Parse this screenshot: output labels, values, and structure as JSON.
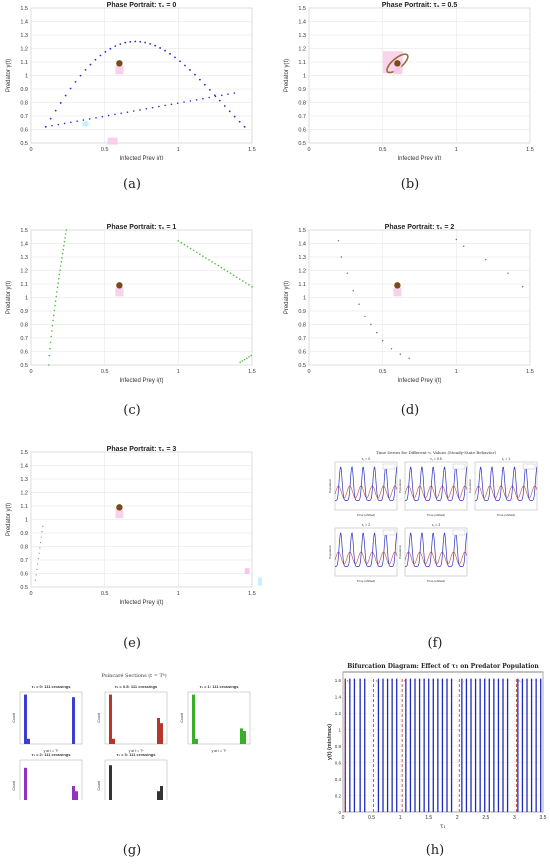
{
  "phase_portraits": [
    {
      "id": "a",
      "title": "Phase Portrait: τ₁ = 0",
      "xlabel": "Infected Prey i(t)",
      "ylabel": "Predator y(t)",
      "xticks": [
        "0",
        "0.5",
        "1",
        "1.5"
      ],
      "yticks": [
        "0.5",
        "0.6",
        "0.7",
        "0.8",
        "0.9",
        "1",
        "1.1",
        "1.2",
        "1.3",
        "1.4",
        "1.5"
      ],
      "equilibrium": {
        "x": 0.6,
        "y": 1.09
      },
      "caption": "(a)"
    },
    {
      "id": "b",
      "title": "Phase Portrait: τ₁ = 0.5",
      "xlabel": "Infected Prey i(t)",
      "ylabel": "Predator y(t)",
      "xticks": [
        "0",
        "0.5",
        "1",
        "1.5"
      ],
      "yticks": [
        "0.5",
        "0.6",
        "0.7",
        "0.8",
        "0.9",
        "1",
        "1.1",
        "1.2",
        "1.3",
        "1.4",
        "1.5"
      ],
      "equilibrium": {
        "x": 0.6,
        "y": 1.09
      },
      "caption": "(b)"
    },
    {
      "id": "c",
      "title": "Phase Portrait: τ₁ = 1",
      "xlabel": "Infected Prey i(t)",
      "ylabel": "Predator y(t)",
      "xticks": [
        "0",
        "0.5",
        "1",
        "1.5"
      ],
      "yticks": [
        "0.5",
        "0.6",
        "0.7",
        "0.8",
        "0.9",
        "1",
        "1.1",
        "1.2",
        "1.3",
        "1.4",
        "1.5"
      ],
      "equilibrium": {
        "x": 0.6,
        "y": 1.09
      },
      "caption": "(c)"
    },
    {
      "id": "d",
      "title": "Phase Portrait: τ₁ = 2",
      "xlabel": "Infected Prey i(t)",
      "ylabel": "Predator y(t)",
      "xticks": [
        "0",
        "0.5",
        "1",
        "1.5"
      ],
      "yticks": [
        "0.5",
        "0.6",
        "0.7",
        "0.8",
        "0.9",
        "1",
        "1.1",
        "1.2",
        "1.3",
        "1.4",
        "1.5"
      ],
      "equilibrium": {
        "x": 0.6,
        "y": 1.09
      },
      "caption": "(d)"
    },
    {
      "id": "e",
      "title": "Phase Portrait: τ₁ = 3",
      "xlabel": "Infected Prey i(t)",
      "ylabel": "Predator y(t)",
      "xticks": [
        "0",
        "0.5",
        "1",
        "1.5"
      ],
      "yticks": [
        "0.5",
        "0.6",
        "0.7",
        "0.8",
        "0.9",
        "1",
        "1.1",
        "1.2",
        "1.3",
        "1.4",
        "1.5"
      ],
      "equilibrium": {
        "x": 0.6,
        "y": 1.09
      },
      "caption": "(e)"
    }
  ],
  "time_series": {
    "title": "Time Series for Different τ₁ Values (Steady-State Behavior)",
    "subplots": [
      "τ₁ = 0",
      "τ₁ = 0.5",
      "τ₁ = 1",
      "τ₁ = 2",
      "τ₁ = 3"
    ],
    "ylabel": "Population",
    "xlabel": "Time (shifted)",
    "caption": "(f)"
  },
  "poincare": {
    "title": "Poincaré Sections (t = Tᵏ)",
    "subplots": [
      {
        "label": "τ₁ = 0: 111 crossings",
        "color": "#3a3fd0"
      },
      {
        "label": "τ₁ = 0.5: 111 crossings",
        "color": "#b5372c"
      },
      {
        "label": "τ₁ = 1: 111 crossings",
        "color": "#3aae2a"
      },
      {
        "label": "τ₁ = 2: 111 crossings",
        "color": "#8e34c0"
      },
      {
        "label": "τ₁ = 3: 111 crossings",
        "color": "#333333"
      }
    ],
    "ylabel": "Count",
    "xlabel": "y at t = Tᵏ",
    "caption": "(g)"
  },
  "chart_data": {
    "type": "scatter",
    "title": "Bifurcation Diagram: Effect of τ₁ on Predator Population",
    "xlabel": "τ₁",
    "ylabel": "y(t) (min/max)",
    "xticks": [
      "0",
      "0.5",
      "1",
      "1.5",
      "2",
      "2.5",
      "3",
      "3.5"
    ],
    "yticks": [
      "0",
      "0.2",
      "0.4",
      "0.6",
      "0.8",
      "1",
      "1.2",
      "1.4",
      "1.6"
    ],
    "xlim": [
      0,
      3.5
    ],
    "ylim": [
      0,
      1.7
    ],
    "series": [
      {
        "color": "#1f2bbd",
        "x": [
          0.04,
          0.12,
          0.2,
          0.3,
          0.38,
          0.62,
          0.7,
          0.78,
          0.86,
          0.94,
          1.1,
          1.18,
          1.26,
          1.34,
          1.42,
          1.5,
          1.58,
          1.66,
          1.74,
          1.82,
          1.9,
          2.08,
          2.16,
          2.24,
          2.32,
          2.4,
          2.48,
          2.56,
          2.64,
          2.72,
          2.8,
          2.88,
          3.06,
          3.14,
          3.22,
          3.3,
          3.38,
          3.46
        ],
        "y_min": 0.0,
        "y_max": 1.62
      },
      {
        "color": "#c0392b",
        "x": [
          0.0,
          0.5,
          1.0,
          2.0,
          3.0
        ],
        "y_min": 0.0,
        "y_max": 1.62
      }
    ],
    "caption": "(h)"
  }
}
